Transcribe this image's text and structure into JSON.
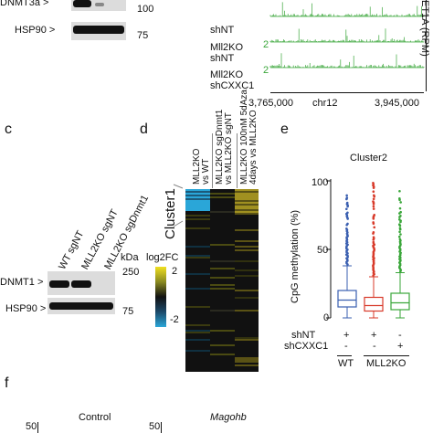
{
  "panel_labels": {
    "c": "c",
    "d": "d",
    "e": "e",
    "f": "f"
  },
  "top_blot": {
    "rows": [
      "DNMT3a >",
      "HSP90 >"
    ],
    "kda": [
      "100",
      "75"
    ]
  },
  "tracks": {
    "labels": [
      "shNT",
      "Mll2KO\nshNT",
      "Mll2KO\nshCXXC1"
    ],
    "scale": [
      "2",
      "2"
    ],
    "axis_title": "ET1A (RPM)",
    "axis_ticks": [
      "3,765,000",
      "chr12",
      "3,945,000"
    ],
    "track_color": "#3aa63a"
  },
  "blot_c": {
    "lanes": [
      "WT sgNT",
      "MLL2KO sgNT",
      "MLL2KO sgDnmt1"
    ],
    "kda_label": "kDa",
    "rows": [
      "DNMT1 >",
      "HSP90 >"
    ],
    "kda": [
      "250",
      "75"
    ]
  },
  "heatmap_d": {
    "columns": [
      "MLL2KO\nvs WT",
      "MLL2KO sgDnmt1\nvs MLL2KO sgNT",
      "MLL2KO 100nM 5dAza\n4days vs MLL2KO"
    ],
    "cluster_label": "Cluster1",
    "legend_title": "log2FC",
    "legend_max": "2",
    "legend_min": "-2",
    "colors": {
      "high": "#f0e020",
      "mid": "#111111",
      "low": "#2aa6d8"
    }
  },
  "chart_e": {
    "title": "Cluster2",
    "ylabel": "CpG methylation (%)",
    "yticks": [
      "0",
      "50",
      "100"
    ],
    "row_labels": [
      "shNT",
      "shCXXC1"
    ],
    "signs": [
      [
        "+",
        "+",
        "-"
      ],
      [
        "-",
        "-",
        "+"
      ]
    ],
    "group_labels": [
      "WT",
      "MLL2KO"
    ]
  },
  "chart_data": {
    "type": "box",
    "title": "Cluster2",
    "ylabel": "CpG methylation (%)",
    "ylim": [
      0,
      100
    ],
    "series": [
      {
        "color": "#3a5fb0",
        "whisker_low": 0,
        "q1": 8,
        "median": 13,
        "q3": 20,
        "whisker_high": 38,
        "outlier_max": 90
      },
      {
        "color": "#d83a2a",
        "whisker_low": 0,
        "q1": 5,
        "median": 9,
        "q3": 15,
        "whisker_high": 30,
        "outlier_max": 100
      },
      {
        "color": "#3aa63a",
        "whisker_low": 0,
        "q1": 6,
        "median": 11,
        "q3": 18,
        "whisker_high": 33,
        "outlier_max": 100
      }
    ]
  },
  "panel_f": {
    "titles": [
      "Control",
      "Magohb"
    ],
    "tick": "50"
  }
}
